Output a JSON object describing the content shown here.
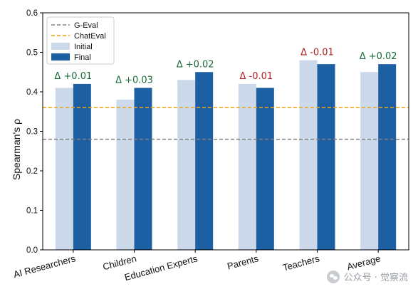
{
  "chart_data": {
    "type": "bar",
    "ylabel": "Spearman's ρ",
    "ylim": [
      0,
      0.6
    ],
    "yticks": [
      "0.0",
      "0.1",
      "0.2",
      "0.3",
      "0.4",
      "0.5",
      "0.6"
    ],
    "categories": [
      "AI Researchers",
      "Children",
      "Education Experts",
      "Parents",
      "Teachers",
      "Average"
    ],
    "series": [
      {
        "name": "Initial",
        "values": [
          0.41,
          0.38,
          0.43,
          0.42,
          0.48,
          0.45
        ],
        "color": "#ccd9ea"
      },
      {
        "name": "Final",
        "values": [
          0.42,
          0.41,
          0.45,
          0.41,
          0.47,
          0.47
        ],
        "color": "#1c5fa3"
      }
    ],
    "reference_lines": [
      {
        "name": "G-Eval",
        "value": 0.28,
        "color": "#808080",
        "style": "dashed"
      },
      {
        "name": "ChatEval",
        "value": 0.36,
        "color": "#f0a30a",
        "style": "dashed"
      }
    ],
    "annotations": [
      {
        "text": "Δ +0.01",
        "color": "#1a6b3a"
      },
      {
        "text": "Δ +0.03",
        "color": "#1a6b3a"
      },
      {
        "text": "Δ +0.02",
        "color": "#1a6b3a"
      },
      {
        "text": "Δ -0.01",
        "color": "#b22222"
      },
      {
        "text": "Δ -0.01",
        "color": "#b22222"
      },
      {
        "text": "Δ +0.02",
        "color": "#1a6b3a"
      }
    ],
    "legend_position": "top-left",
    "grid": false
  },
  "watermark": {
    "text": "公众号 · 觉察流"
  }
}
